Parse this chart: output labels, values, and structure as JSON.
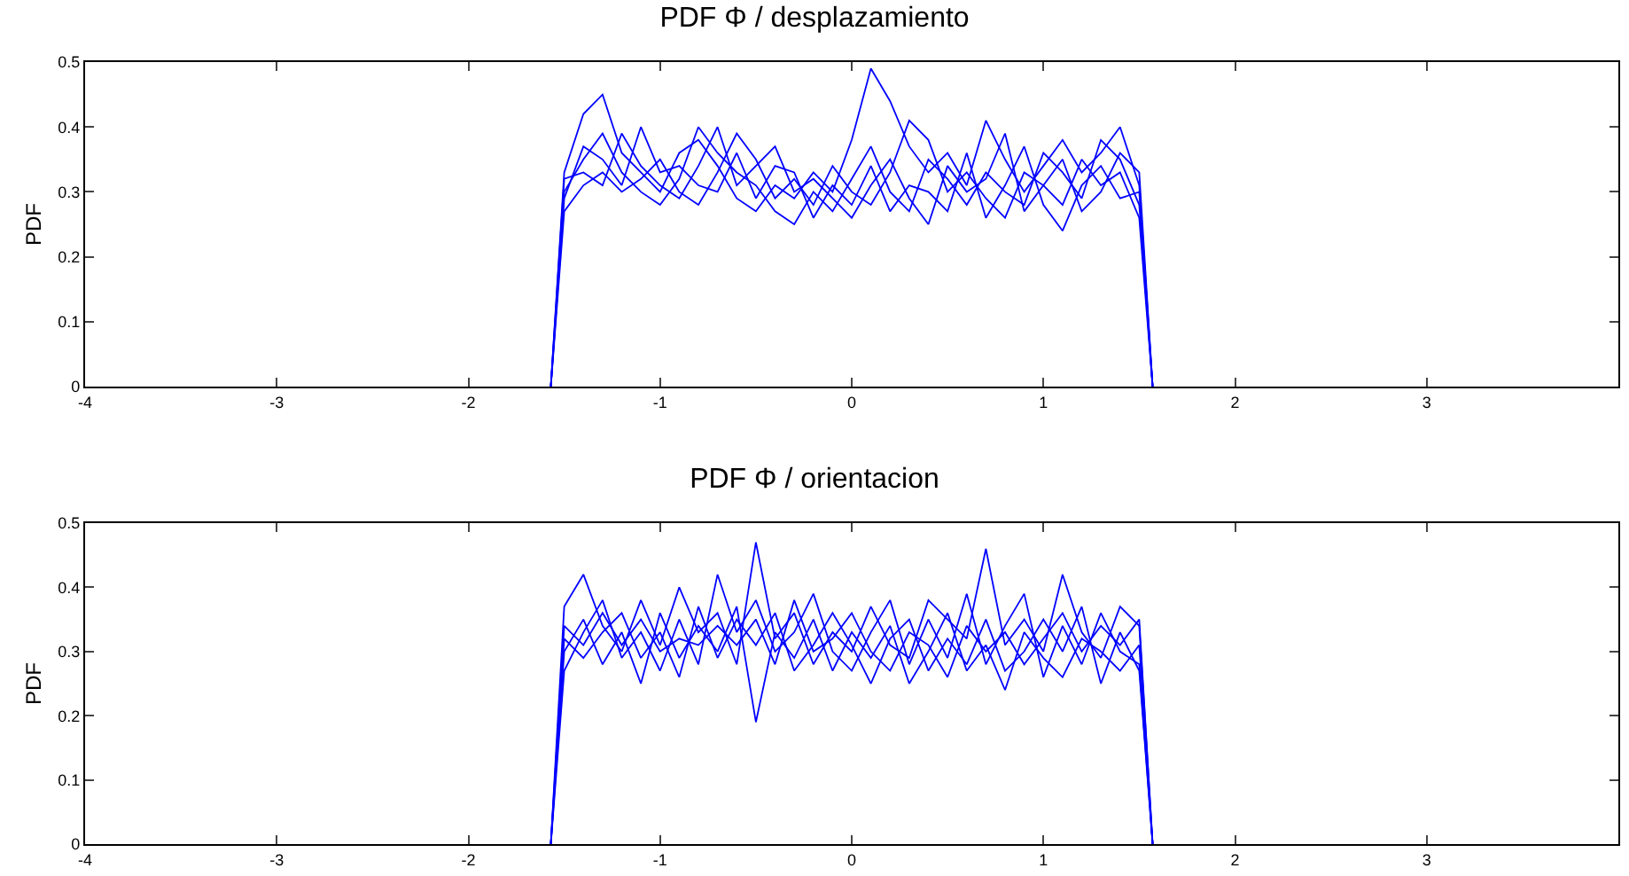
{
  "chart_data": [
    {
      "type": "line",
      "title": "PDF Φ / desplazamiento",
      "ylabel": "PDF",
      "xlim": [
        -4,
        4
      ],
      "xticks": [
        -4,
        -3,
        -2,
        -1,
        0,
        1,
        2,
        3
      ],
      "ylim": [
        0,
        0.5
      ],
      "yticks": [
        0,
        0.1,
        0.2,
        0.3,
        0.4,
        0.5
      ],
      "grid": false,
      "marker": "none",
      "line_style": "solid",
      "x": [
        -1.57,
        -1.5,
        -1.4,
        -1.3,
        -1.2,
        -1.1,
        -1.0,
        -0.9,
        -0.8,
        -0.7,
        -0.6,
        -0.5,
        -0.4,
        -0.3,
        -0.2,
        -0.1,
        0,
        0.1,
        0.2,
        0.3,
        0.4,
        0.5,
        0.6,
        0.7,
        0.8,
        0.9,
        1.0,
        1.1,
        1.2,
        1.3,
        1.4,
        1.5,
        1.57
      ],
      "series": [
        {
          "color": "#0000ff",
          "values": [
            0,
            0.33,
            0.42,
            0.45,
            0.36,
            0.33,
            0.3,
            0.36,
            0.38,
            0.34,
            0.29,
            0.27,
            0.31,
            0.29,
            0.33,
            0.3,
            0.38,
            0.49,
            0.44,
            0.37,
            0.33,
            0.36,
            0.31,
            0.41,
            0.35,
            0.3,
            0.34,
            0.38,
            0.33,
            0.36,
            0.4,
            0.31,
            0
          ]
        },
        {
          "color": "#0000ff",
          "values": [
            0,
            0.3,
            0.35,
            0.39,
            0.33,
            0.3,
            0.28,
            0.32,
            0.4,
            0.36,
            0.33,
            0.31,
            0.27,
            0.25,
            0.3,
            0.27,
            0.32,
            0.37,
            0.3,
            0.27,
            0.35,
            0.32,
            0.28,
            0.33,
            0.3,
            0.28,
            0.36,
            0.33,
            0.29,
            0.38,
            0.35,
            0.28,
            0
          ]
        },
        {
          "color": "#0000ff",
          "values": [
            0,
            0.27,
            0.31,
            0.33,
            0.3,
            0.32,
            0.35,
            0.3,
            0.28,
            0.33,
            0.39,
            0.35,
            0.29,
            0.32,
            0.28,
            0.34,
            0.3,
            0.28,
            0.33,
            0.41,
            0.38,
            0.3,
            0.33,
            0.29,
            0.26,
            0.33,
            0.31,
            0.28,
            0.35,
            0.31,
            0.33,
            0.26,
            0
          ]
        },
        {
          "color": "#0000ff",
          "values": [
            0,
            0.29,
            0.37,
            0.35,
            0.31,
            0.4,
            0.33,
            0.34,
            0.31,
            0.3,
            0.36,
            0.29,
            0.34,
            0.33,
            0.26,
            0.31,
            0.28,
            0.34,
            0.27,
            0.31,
            0.3,
            0.27,
            0.36,
            0.26,
            0.31,
            0.37,
            0.28,
            0.24,
            0.31,
            0.34,
            0.29,
            0.3,
            0
          ]
        },
        {
          "color": "#0000ff",
          "values": [
            0,
            0.32,
            0.33,
            0.31,
            0.39,
            0.34,
            0.31,
            0.29,
            0.34,
            0.4,
            0.31,
            0.34,
            0.37,
            0.3,
            0.32,
            0.29,
            0.26,
            0.31,
            0.35,
            0.29,
            0.25,
            0.34,
            0.3,
            0.32,
            0.39,
            0.27,
            0.31,
            0.35,
            0.27,
            0.3,
            0.36,
            0.33,
            0
          ]
        }
      ]
    },
    {
      "type": "line",
      "title": "PDF Φ / orientacion",
      "ylabel": "PDF",
      "xlim": [
        -4,
        4
      ],
      "xticks": [
        -4,
        -3,
        -2,
        -1,
        0,
        1,
        2,
        3
      ],
      "ylim": [
        0,
        0.5
      ],
      "yticks": [
        0,
        0.1,
        0.2,
        0.3,
        0.4,
        0.5
      ],
      "grid": false,
      "marker": "none",
      "line_style": "solid",
      "x": [
        -1.57,
        -1.5,
        -1.4,
        -1.3,
        -1.2,
        -1.1,
        -1.0,
        -0.9,
        -0.8,
        -0.7,
        -0.6,
        -0.5,
        -0.4,
        -0.3,
        -0.2,
        -0.1,
        0,
        0.1,
        0.2,
        0.3,
        0.4,
        0.5,
        0.6,
        0.7,
        0.8,
        0.9,
        1.0,
        1.1,
        1.2,
        1.3,
        1.4,
        1.5,
        1.57
      ],
      "series": [
        {
          "color": "#0000ff",
          "values": [
            0,
            0.37,
            0.42,
            0.34,
            0.3,
            0.38,
            0.31,
            0.4,
            0.33,
            0.36,
            0.28,
            0.47,
            0.32,
            0.36,
            0.28,
            0.33,
            0.3,
            0.37,
            0.31,
            0.29,
            0.38,
            0.35,
            0.32,
            0.46,
            0.31,
            0.35,
            0.3,
            0.42,
            0.33,
            0.29,
            0.37,
            0.34,
            0
          ]
        },
        {
          "color": "#0000ff",
          "values": [
            0,
            0.3,
            0.35,
            0.28,
            0.33,
            0.25,
            0.36,
            0.29,
            0.34,
            0.3,
            0.37,
            0.19,
            0.33,
            0.29,
            0.35,
            0.27,
            0.33,
            0.29,
            0.34,
            0.25,
            0.3,
            0.36,
            0.27,
            0.31,
            0.24,
            0.33,
            0.29,
            0.26,
            0.32,
            0.3,
            0.27,
            0.31,
            0
          ]
        },
        {
          "color": "#0000ff",
          "values": [
            0,
            0.27,
            0.33,
            0.38,
            0.29,
            0.33,
            0.27,
            0.35,
            0.28,
            0.42,
            0.33,
            0.38,
            0.3,
            0.33,
            0.39,
            0.3,
            0.27,
            0.33,
            0.38,
            0.28,
            0.35,
            0.29,
            0.39,
            0.28,
            0.34,
            0.39,
            0.26,
            0.34,
            0.28,
            0.36,
            0.3,
            0.28,
            0
          ]
        },
        {
          "color": "#0000ff",
          "values": [
            0,
            0.32,
            0.29,
            0.33,
            0.36,
            0.29,
            0.33,
            0.26,
            0.37,
            0.29,
            0.35,
            0.31,
            0.36,
            0.27,
            0.31,
            0.36,
            0.31,
            0.25,
            0.32,
            0.35,
            0.27,
            0.32,
            0.28,
            0.35,
            0.27,
            0.3,
            0.35,
            0.3,
            0.37,
            0.25,
            0.33,
            0.27,
            0
          ]
        },
        {
          "color": "#0000ff",
          "values": [
            0,
            0.34,
            0.31,
            0.36,
            0.31,
            0.35,
            0.3,
            0.32,
            0.31,
            0.34,
            0.31,
            0.35,
            0.28,
            0.38,
            0.3,
            0.32,
            0.36,
            0.3,
            0.27,
            0.33,
            0.31,
            0.26,
            0.34,
            0.3,
            0.33,
            0.28,
            0.32,
            0.36,
            0.3,
            0.34,
            0.31,
            0.35,
            0
          ]
        }
      ]
    }
  ]
}
